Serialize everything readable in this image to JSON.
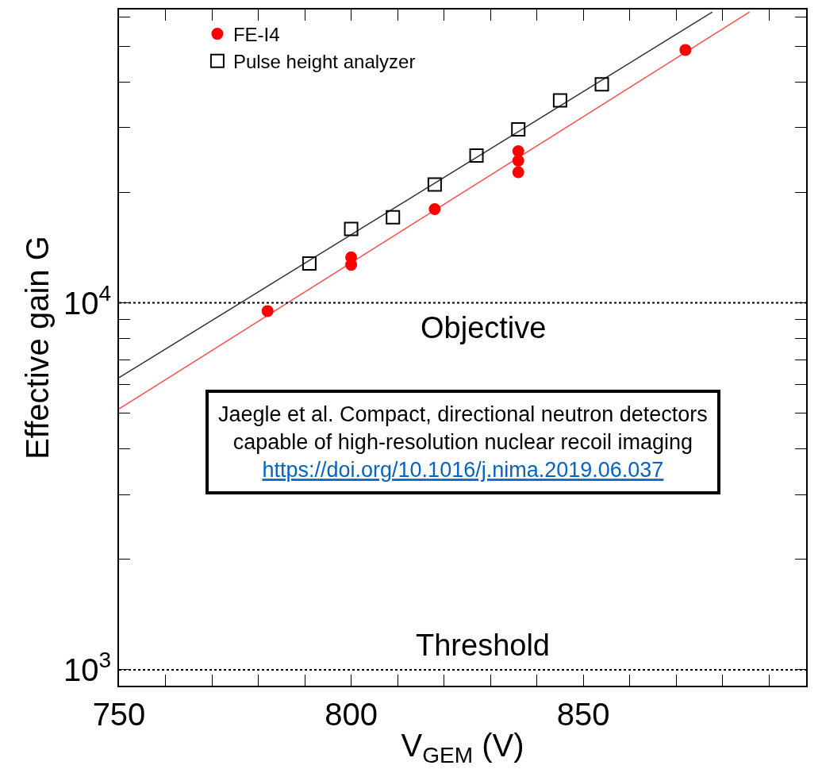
{
  "chart_data": {
    "type": "scatter",
    "xlabel": "V$_{GEM}$ (V)",
    "ylabel": "Effective gain G",
    "log": "y",
    "xlim": [
      750,
      898
    ],
    "ylim": [
      905,
      63000
    ],
    "xticks": [
      750,
      {
        "value": 760,
        "label": null
      },
      {
        "value": 770,
        "label": null
      },
      {
        "value": 780,
        "label": null
      },
      {
        "value": 790,
        "label": null
      },
      800,
      {
        "value": 810,
        "label": null
      },
      {
        "value": 820,
        "label": null
      },
      {
        "value": 830,
        "label": null
      },
      {
        "value": 840,
        "label": null
      },
      850,
      {
        "value": 860,
        "label": null
      },
      {
        "value": 870,
        "label": null
      },
      {
        "value": 880,
        "label": null
      },
      {
        "value": 890,
        "label": null
      }
    ],
    "yticks": [
      {
        "value": 1000,
        "label": "10$^{3}$"
      },
      {
        "value": 2000,
        "label": null
      },
      {
        "value": 3000,
        "label": null
      },
      {
        "value": 4000,
        "label": null
      },
      {
        "value": 5000,
        "label": null
      },
      {
        "value": 6000,
        "label": null
      },
      {
        "value": 7000,
        "label": null
      },
      {
        "value": 8000,
        "label": null
      },
      {
        "value": 9000,
        "label": null
      },
      {
        "value": 10000,
        "label": "10$^{4}$"
      },
      {
        "value": 20000,
        "label": null
      },
      {
        "value": 30000,
        "label": null
      },
      {
        "value": 40000,
        "label": null
      },
      {
        "value": 50000,
        "label": null
      },
      {
        "value": 60000,
        "label": null
      }
    ],
    "legend": "top left",
    "series": [
      {
        "name": "FE-I4",
        "color": "#ff0000",
        "marker": "circle",
        "x": [
          782,
          800,
          800,
          818,
          836,
          836,
          836,
          872
        ],
        "values": [
          9500,
          13300,
          12700,
          18000,
          25900,
          24400,
          22700,
          48900
        ]
      },
      {
        "name": "Pulse height analyzer",
        "color": "#000000",
        "marker": "square",
        "x": [
          791,
          800,
          809,
          818,
          827,
          836,
          845,
          854
        ],
        "values": [
          12800,
          15900,
          17100,
          21000,
          25200,
          29700,
          35600,
          39400
        ]
      },
      {
        "type": "line",
        "color": "#ff4d4d",
        "marker": "none",
        "line_style": "solid",
        "x": [
          750,
          885.8
        ],
        "values": [
          5140,
          62000
        ]
      },
      {
        "type": "line",
        "color": "#333333",
        "marker": "none",
        "line_style": "solid",
        "x": [
          750,
          877.8
        ],
        "values": [
          6250,
          62000
        ]
      }
    ],
    "ref_lines": [
      {
        "axis": "y",
        "value": 10000,
        "label": "Objective",
        "color": "#000000",
        "line_style": "dotted"
      },
      {
        "axis": "y",
        "value": 1000,
        "label": "Threshold",
        "color": "#000000",
        "line_style": "dotted"
      }
    ],
    "annotations": [
      "Jaegle et al. Compact, directional neutron detectors\ncapable of high-resolution nuclear recoil imaging\nhttps://doi.org/10.1016/j.nima.2019.06.037"
    ]
  }
}
